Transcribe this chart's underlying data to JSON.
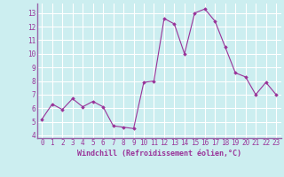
{
  "x": [
    0,
    1,
    2,
    3,
    4,
    5,
    6,
    7,
    8,
    9,
    10,
    11,
    12,
    13,
    14,
    15,
    16,
    17,
    18,
    19,
    20,
    21,
    22,
    23
  ],
  "y": [
    5.2,
    6.3,
    5.9,
    6.7,
    6.1,
    6.5,
    6.1,
    4.7,
    4.6,
    4.5,
    7.9,
    8.0,
    12.6,
    12.2,
    10.0,
    13.0,
    13.3,
    12.4,
    10.5,
    8.6,
    8.3,
    7.0,
    7.9,
    7.0
  ],
  "line_color": "#993399",
  "marker": "D",
  "markersize": 1.8,
  "linewidth": 0.8,
  "xlabel": "Windchill (Refroidissement éolien,°C)",
  "xlabel_fontsize": 6.0,
  "xtick_labels": [
    "0",
    "1",
    "2",
    "3",
    "4",
    "5",
    "6",
    "7",
    "8",
    "9",
    "10",
    "11",
    "12",
    "13",
    "14",
    "15",
    "16",
    "17",
    "18",
    "19",
    "20",
    "21",
    "22",
    "23"
  ],
  "ytick_values": [
    4,
    5,
    6,
    7,
    8,
    9,
    10,
    11,
    12,
    13
  ],
  "xlim": [
    -0.5,
    23.5
  ],
  "ylim": [
    3.8,
    13.7
  ],
  "background_color": "#cceef0",
  "grid_color": "#ffffff",
  "tick_fontsize": 5.5,
  "spine_color": "#9966aa"
}
